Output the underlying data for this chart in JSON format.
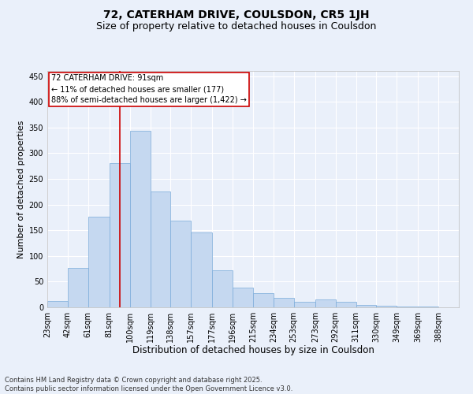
{
  "title_line1": "72, CATERHAM DRIVE, COULSDON, CR5 1JH",
  "title_line2": "Size of property relative to detached houses in Coulsdon",
  "xlabel": "Distribution of detached houses by size in Coulsdon",
  "ylabel": "Number of detached properties",
  "footer_line1": "Contains HM Land Registry data © Crown copyright and database right 2025.",
  "footer_line2": "Contains public sector information licensed under the Open Government Licence v3.0.",
  "annotation_line1": "72 CATERHAM DRIVE: 91sqm",
  "annotation_line2": "← 11% of detached houses are smaller (177)",
  "annotation_line3": "88% of semi-detached houses are larger (1,422) →",
  "bar_color": "#c5d8f0",
  "bar_edge_color": "#7aabda",
  "vline_color": "#cc0000",
  "vline_x": 91,
  "bins": [
    23,
    42,
    61,
    81,
    100,
    119,
    138,
    157,
    177,
    196,
    215,
    234,
    253,
    273,
    292,
    311,
    330,
    349,
    369,
    388,
    407
  ],
  "values": [
    12,
    77,
    177,
    280,
    343,
    225,
    168,
    145,
    72,
    38,
    27,
    18,
    11,
    15,
    10,
    5,
    3,
    2,
    1,
    0
  ],
  "ylim": [
    0,
    460
  ],
  "yticks": [
    0,
    50,
    100,
    150,
    200,
    250,
    300,
    350,
    400,
    450
  ],
  "background_color": "#eaf0fa",
  "plot_bg_color": "#eaf0fa",
  "grid_color": "#ffffff",
  "title_fontsize": 10,
  "subtitle_fontsize": 9,
  "tick_fontsize": 7,
  "xlabel_fontsize": 8.5,
  "ylabel_fontsize": 8,
  "annotation_fontsize": 7,
  "footer_fontsize": 6
}
